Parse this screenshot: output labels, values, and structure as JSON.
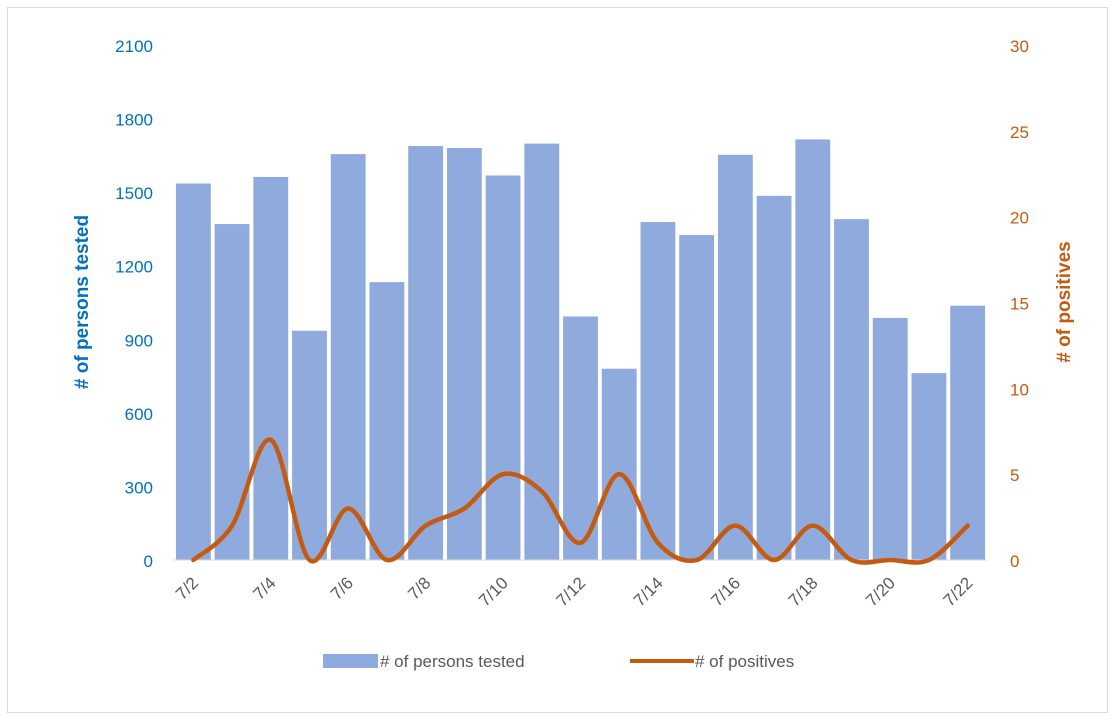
{
  "colors": {
    "bars": "#8faadc",
    "line": "#c55a11",
    "left_axis_text": "#0070c0",
    "right_axis_text": "#c55a11",
    "category_text": "#595959",
    "axis_line": "#d9d9d9"
  },
  "chart_data": {
    "type": "bar",
    "title": "",
    "categories": [
      "7/2",
      "7/3",
      "7/4",
      "7/5",
      "7/6",
      "7/7",
      "7/8",
      "7/9",
      "7/10",
      "7/11",
      "7/12",
      "7/13",
      "7/14",
      "7/15",
      "7/16",
      "7/17",
      "7/18",
      "7/19",
      "7/20",
      "7/21",
      "7/22"
    ],
    "x_tick_labels": [
      "7/2",
      "7/4",
      "7/6",
      "7/8",
      "7/10",
      "7/12",
      "7/14",
      "7/16",
      "7/18",
      "7/20",
      "7/22"
    ],
    "x_tick_categories": [
      "7/2",
      "7/4",
      "7/6",
      "7/8",
      "7/10",
      "7/12",
      "7/14",
      "7/16",
      "7/18",
      "7/20",
      "7/22"
    ],
    "ylabel": "# of persons tested",
    "ylabel_right": "# of positives",
    "ylim": [
      0,
      2100
    ],
    "y_ticks": [
      "0",
      "300",
      "600",
      "900",
      "1200",
      "1500",
      "1800",
      "2100"
    ],
    "ylim_right": [
      0,
      30
    ],
    "y_ticks_right": [
      "0",
      "5",
      "10",
      "15",
      "20",
      "25",
      "30"
    ],
    "grid": false,
    "legend_position": "bottom",
    "series": [
      {
        "name": "# of persons tested",
        "type": "bar",
        "axis": "left",
        "values": [
          1535,
          1370,
          1562,
          935,
          1655,
          1133,
          1688,
          1680,
          1568,
          1698,
          993,
          780,
          1378,
          1325,
          1652,
          1485,
          1715,
          1390,
          987,
          762,
          1037
        ]
      },
      {
        "name": "# of positives",
        "type": "line",
        "axis": "right",
        "smooth": true,
        "values": [
          0,
          2,
          7,
          0,
          3,
          0,
          2,
          3,
          5,
          4,
          1,
          5,
          1,
          0,
          2,
          0,
          2,
          0,
          0,
          0,
          2
        ]
      }
    ]
  }
}
